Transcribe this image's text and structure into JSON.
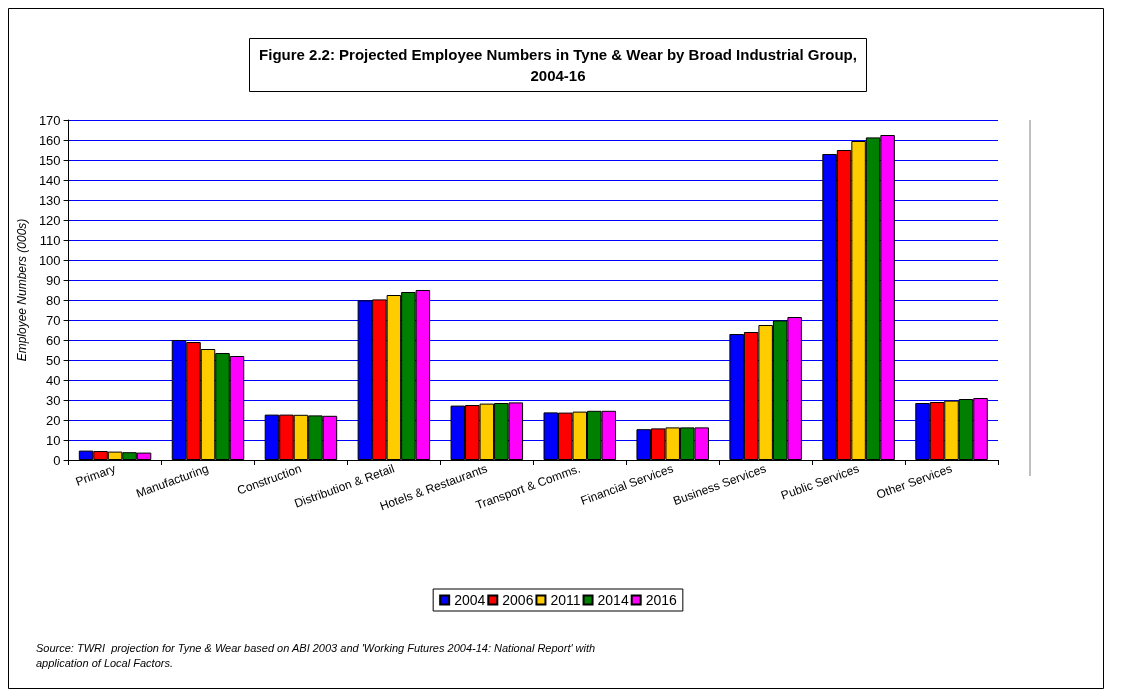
{
  "chart_data": {
    "type": "bar",
    "title": "Figure 2.2: Projected Employee Numbers in Tyne & Wear by Broad Industrial Group,\n2004-16",
    "ylabel": "Employee Numbers (000s)",
    "categories": [
      "Primary",
      "Manufacturing",
      "Construction",
      "Distribution & Retail",
      "Hotels & Restaurants",
      "Transport & Comms.",
      "Financial Services",
      "Business Services",
      "Public Services",
      "Other Services"
    ],
    "series": [
      {
        "name": "2004",
        "color": "#0000ff",
        "values": [
          4.7,
          60,
          22.7,
          79.8,
          27.2,
          23.8,
          15.4,
          63,
          153,
          28.5
        ]
      },
      {
        "name": "2006",
        "color": "#ff0000",
        "values": [
          4.5,
          59,
          22.7,
          80.3,
          27.5,
          23.7,
          15.8,
          64,
          155,
          29
        ]
      },
      {
        "name": "2011",
        "color": "#ffcc00",
        "values": [
          4.2,
          55.5,
          22.6,
          82.5,
          28.2,
          24.2,
          16.3,
          67.5,
          159.5,
          29.7
        ]
      },
      {
        "name": "2014",
        "color": "#008000",
        "values": [
          3.9,
          53.5,
          22.3,
          84,
          28.5,
          24.6,
          16.3,
          69.8,
          161.3,
          30.5
        ]
      },
      {
        "name": "2016",
        "color": "#ff00ff",
        "values": [
          3.7,
          52,
          22.1,
          85,
          28.8,
          24.6,
          16.3,
          71.5,
          162.5,
          31
        ]
      }
    ],
    "ylim": [
      0,
      170
    ],
    "yticks": [
      0,
      10,
      20,
      30,
      40,
      50,
      60,
      70,
      80,
      90,
      100,
      110,
      120,
      130,
      140,
      150,
      160,
      170
    ],
    "grid": "y",
    "legend": "bottom",
    "annotations": [
      "Source: TWRI  projection for Tyne & Wear based on ABI 2003 and 'Working Futures 2004-14: National Report' with\napplication of Local Factors."
    ]
  }
}
